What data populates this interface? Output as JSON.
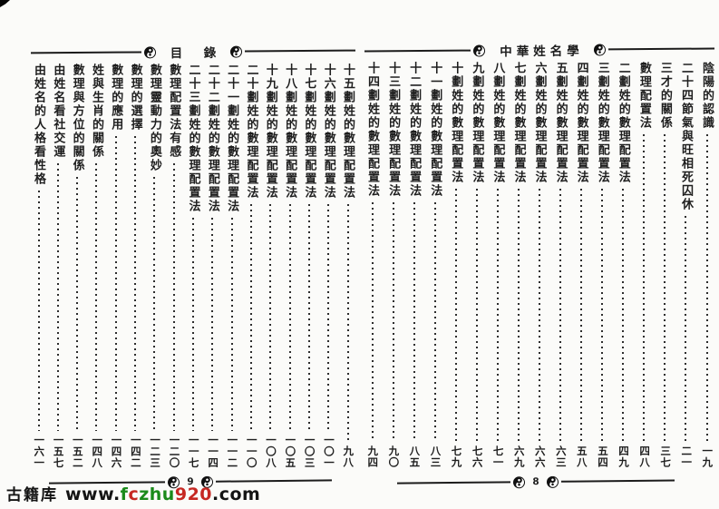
{
  "colors": {
    "paper": "#fbfbf9",
    "ink": "#1e1e1e",
    "watermark_green": "#1a8a1a",
    "watermark_red": "#c62822",
    "watermark_black": "#141414"
  },
  "right_page": {
    "header_title": "中華姓名學",
    "page_number": "8",
    "entries": [
      {
        "title": "陰陽的認識",
        "page": "一九"
      },
      {
        "title": "二十四節氣與旺相死囚休",
        "page": "二一"
      },
      {
        "title": "三才的關係",
        "page": "三七"
      },
      {
        "title": "數理配置法",
        "page": "四八"
      },
      {
        "title": "二劃姓的數理配置法",
        "page": "四九"
      },
      {
        "title": "三劃姓的數理配置法",
        "page": "五四"
      },
      {
        "title": "四劃姓的數理配置法",
        "page": "五八"
      },
      {
        "title": "五劃姓的數理配置法",
        "page": "六三"
      },
      {
        "title": "六劃姓的數理配置法",
        "page": "六六"
      },
      {
        "title": "七劃姓的數理配置法",
        "page": "六九"
      },
      {
        "title": "八劃姓的數理配置法",
        "page": "七一"
      },
      {
        "title": "九劃姓的數理配置法",
        "page": "七六"
      },
      {
        "title": "十劃姓的數理配置法",
        "page": "七九"
      },
      {
        "title": "十一劃姓的數理配置法",
        "page": "八三"
      },
      {
        "title": "十二劃姓的數理配置法",
        "page": "八五"
      },
      {
        "title": "十三劃姓的數理配置法",
        "page": "九〇"
      },
      {
        "title": "十四劃姓的數理配置法",
        "page": "九四"
      }
    ]
  },
  "left_page": {
    "header_title": "目　錄",
    "page_number": "9",
    "entries": [
      {
        "title": "十五劃姓的數理配置法",
        "page": "九八"
      },
      {
        "title": "十六劃姓的數理配置法",
        "page": "一〇一"
      },
      {
        "title": "十七劃姓的數理配置法",
        "page": "一〇三"
      },
      {
        "title": "十八劃姓的數理配置法",
        "page": "一〇五"
      },
      {
        "title": "十九劃姓的數理配置法",
        "page": "一〇八"
      },
      {
        "title": "二十劃姓的數理配置法",
        "page": "一一〇"
      },
      {
        "title": "二十一劃姓的數理配置法",
        "page": "一一二"
      },
      {
        "title": "二十二劃姓的數理配置法",
        "page": "一一四"
      },
      {
        "title": "二十三劃姓的數理配置法",
        "page": "一一七"
      },
      {
        "title": "數理配置法有感",
        "page": "一二〇"
      },
      {
        "title": "數理靈動力的奧妙",
        "page": "一二三"
      },
      {
        "title": "數理的選擇",
        "page": "一四二"
      },
      {
        "title": "數理的應用",
        "page": "一四六"
      },
      {
        "title": "姓與生肖的關係",
        "page": "一四八"
      },
      {
        "title": "數理與方位的關係",
        "page": "一五二"
      },
      {
        "title": "由姓名看社交運",
        "page": "一五七"
      },
      {
        "title": "由姓名的人格看性格",
        "page": "一六一"
      }
    ]
  },
  "watermark": {
    "label": "古籍库",
    "url_segments": [
      {
        "text": "www.",
        "color": "#141414"
      },
      {
        "text": "f",
        "color": "#1a8a1a"
      },
      {
        "text": "c",
        "color": "#c62822"
      },
      {
        "text": "zhu",
        "color": "#1a8a1a"
      },
      {
        "text": "920",
        "color": "#c62822"
      },
      {
        "text": ".com",
        "color": "#141414"
      }
    ]
  }
}
